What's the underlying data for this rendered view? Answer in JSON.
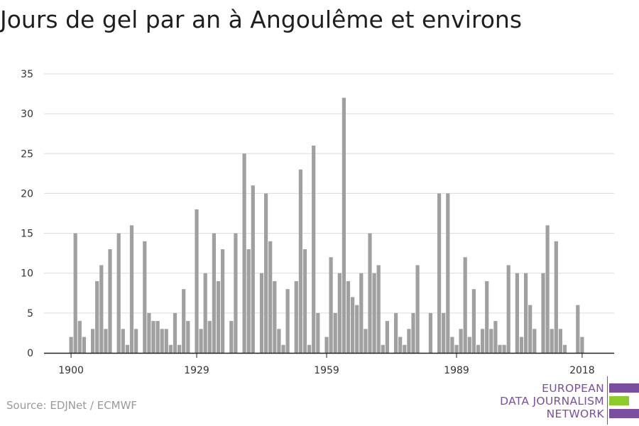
{
  "title": "Jours de gel par an à Angoulême et environs",
  "source": "Source: EDJNet / ECMWF",
  "logo": {
    "line1": "EUROPEAN",
    "line2": "DATA JOURNALISM",
    "line3": "NETWORK",
    "colors": {
      "purple": "#7b4fa0",
      "green": "#8ccc2a"
    }
  },
  "colors": {
    "bar": "#a0a0a0",
    "grid": "#dcdcdc",
    "axis": "#222222"
  },
  "chart_data": {
    "type": "bar",
    "title": "Jours de gel par an à Angoulême et environs",
    "xlabel": "",
    "ylabel": "",
    "ylim": [
      0,
      35
    ],
    "yticks": [
      0,
      5,
      10,
      15,
      20,
      25,
      30,
      35
    ],
    "xticks": [
      1900,
      1929,
      1959,
      1989,
      2018
    ],
    "grid": true,
    "x": [
      1900,
      1901,
      1902,
      1903,
      1904,
      1905,
      1906,
      1907,
      1908,
      1909,
      1910,
      1911,
      1912,
      1913,
      1914,
      1915,
      1916,
      1917,
      1918,
      1919,
      1920,
      1921,
      1922,
      1923,
      1924,
      1925,
      1926,
      1927,
      1928,
      1929,
      1930,
      1931,
      1932,
      1933,
      1934,
      1935,
      1936,
      1937,
      1938,
      1939,
      1940,
      1941,
      1942,
      1943,
      1944,
      1945,
      1946,
      1947,
      1948,
      1949,
      1950,
      1951,
      1952,
      1953,
      1954,
      1955,
      1956,
      1957,
      1958,
      1959,
      1960,
      1961,
      1962,
      1963,
      1964,
      1965,
      1966,
      1967,
      1968,
      1969,
      1970,
      1971,
      1972,
      1973,
      1974,
      1975,
      1976,
      1977,
      1978,
      1979,
      1980,
      1981,
      1982,
      1983,
      1984,
      1985,
      1986,
      1987,
      1988,
      1989,
      1990,
      1991,
      1992,
      1993,
      1994,
      1995,
      1996,
      1997,
      1998,
      1999,
      2000,
      2001,
      2002,
      2003,
      2004,
      2005,
      2006,
      2007,
      2008,
      2009,
      2010,
      2011,
      2012,
      2013,
      2014,
      2015,
      2016,
      2017,
      2018,
      2019,
      2020,
      2021
    ],
    "values": [
      2,
      15,
      4,
      2,
      0,
      3,
      9,
      11,
      3,
      13,
      0,
      15,
      3,
      1,
      16,
      3,
      0,
      14,
      5,
      4,
      4,
      3,
      3,
      1,
      5,
      1,
      8,
      4,
      0,
      18,
      3,
      10,
      4,
      15,
      9,
      13,
      0,
      4,
      15,
      0,
      25,
      13,
      21,
      0,
      10,
      20,
      14,
      9,
      3,
      1,
      8,
      0,
      9,
      23,
      13,
      1,
      26,
      5,
      0,
      2,
      12,
      5,
      10,
      32,
      9,
      7,
      6,
      10,
      3,
      15,
      10,
      11,
      1,
      4,
      0,
      5,
      2,
      1,
      3,
      5,
      11,
      0,
      0,
      5,
      0,
      20,
      5,
      20,
      2,
      1,
      3,
      12,
      2,
      8,
      1,
      3,
      9,
      3,
      4,
      1,
      1,
      11,
      0,
      10,
      2,
      10,
      6,
      3,
      0,
      10,
      16,
      3,
      14,
      3,
      1,
      0,
      0,
      6,
      2,
      0,
      0,
      0
    ],
    "bar_color": "#a0a0a0"
  }
}
